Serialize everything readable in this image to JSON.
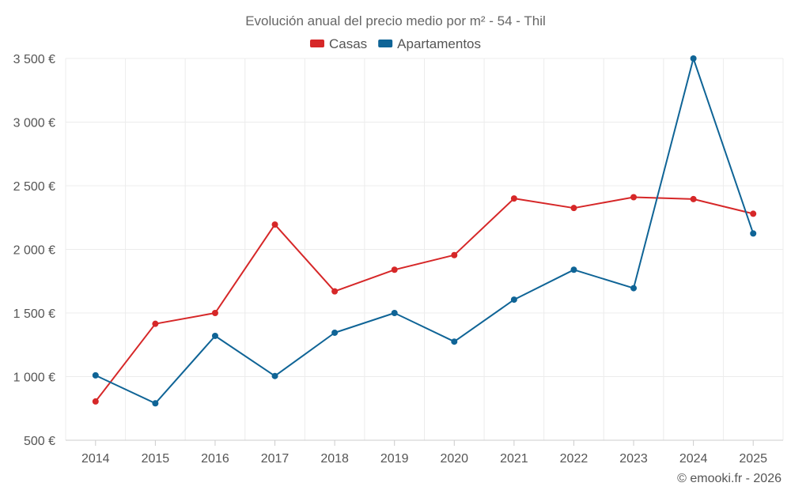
{
  "chart_data": {
    "type": "line",
    "title": "Evolución anual del precio medio por m² - 54 - Thil",
    "categories": [
      "2014",
      "2015",
      "2016",
      "2017",
      "2018",
      "2019",
      "2020",
      "2021",
      "2022",
      "2023",
      "2024",
      "2025"
    ],
    "series": [
      {
        "name": "Casas",
        "color": "#d62728",
        "values": [
          805,
          1415,
          1500,
          2195,
          1670,
          1840,
          1955,
          2400,
          2325,
          2410,
          2395,
          2280
        ]
      },
      {
        "name": "Apartamentos",
        "color": "#0f6496",
        "values": [
          1010,
          790,
          1320,
          1005,
          1345,
          1500,
          1275,
          1605,
          1840,
          1695,
          3500,
          2125
        ]
      }
    ],
    "ylim": [
      500,
      3500
    ],
    "yticks": [
      500,
      1000,
      1500,
      2000,
      2500,
      3000,
      3500
    ],
    "ytick_labels": [
      "500 €",
      "1 000 €",
      "1 500 €",
      "2 000 €",
      "2 500 €",
      "3 000 €",
      "3 500 €"
    ],
    "legend_position": "top-center",
    "grid": true,
    "xlabel": "",
    "ylabel": ""
  },
  "credit": "© emooki.fr - 2026"
}
